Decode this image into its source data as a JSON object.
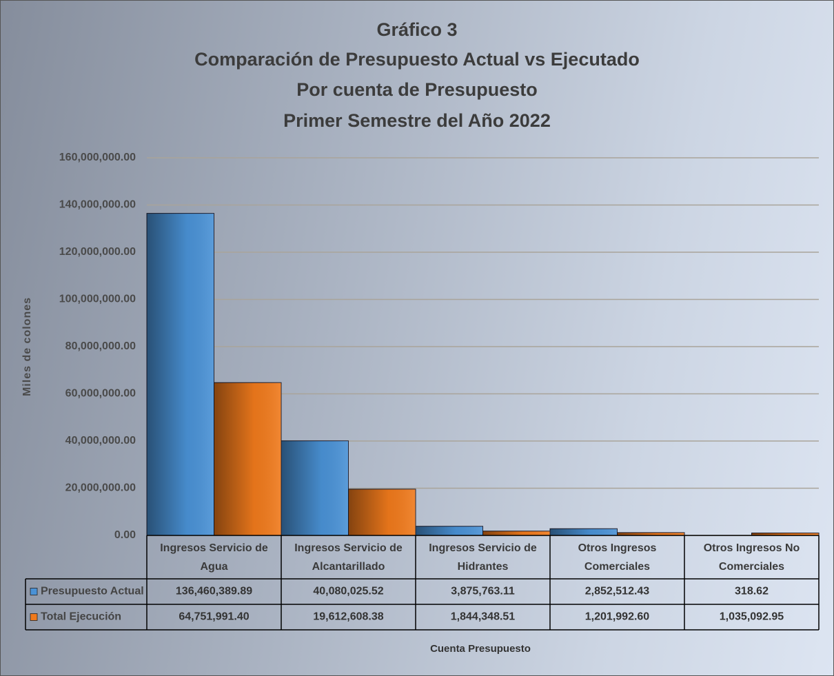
{
  "chart_data": {
    "type": "bar",
    "title": "Gráfico 3",
    "subtitle": [
      "Comparación de Presupuesto Actual vs Ejecutado",
      "Por cuenta de Presupuesto",
      "Primer Semestre del Año 2022"
    ],
    "y_label": "Miles de colones",
    "x_label": "Cuenta Presupuesto",
    "categories": [
      "Ingresos Servicio de Agua",
      "Ingresos Servicio de Alcantarillado",
      "Ingresos Servicio de Hidrantes",
      "Otros Ingresos Comerciales",
      "Otros Ingresos No Comerciales"
    ],
    "series": [
      {
        "name": "Presupuesto Actual",
        "color": "#4a92d6",
        "values": [
          136460389.89,
          40080025.52,
          3875763.11,
          2852512.43,
          318.62
        ],
        "value_labels": [
          "136,460,389.89",
          "40,080,025.52",
          "3,875,763.11",
          "2,852,512.43",
          "318.62"
        ]
      },
      {
        "name": "Total Ejecución",
        "color": "#f07a1c",
        "values": [
          64751991.4,
          19612608.38,
          1844348.51,
          1201992.6,
          1035092.95
        ],
        "value_labels": [
          "64,751,991.40",
          "19,612,608.38",
          "1,844,348.51",
          "1,201,992.60",
          "1,035,092.95"
        ]
      }
    ],
    "ylim": [
      0,
      160000000
    ],
    "yticks": [
      {
        "value": 0,
        "label": "0.00"
      },
      {
        "value": 20000000,
        "label": "20,000,000.00"
      },
      {
        "value": 40000000,
        "label": "40,000,000.00"
      },
      {
        "value": 60000000,
        "label": "60,000,000.00"
      },
      {
        "value": 80000000,
        "label": "80,000,000.00"
      },
      {
        "value": 100000000,
        "label": "100,000,000.00"
      },
      {
        "value": 120000000,
        "label": "120,000,000.00"
      },
      {
        "value": 140000000,
        "label": "140,000,000.00"
      },
      {
        "value": 160000000,
        "label": "160,000,000.00"
      }
    ],
    "grid": true
  }
}
